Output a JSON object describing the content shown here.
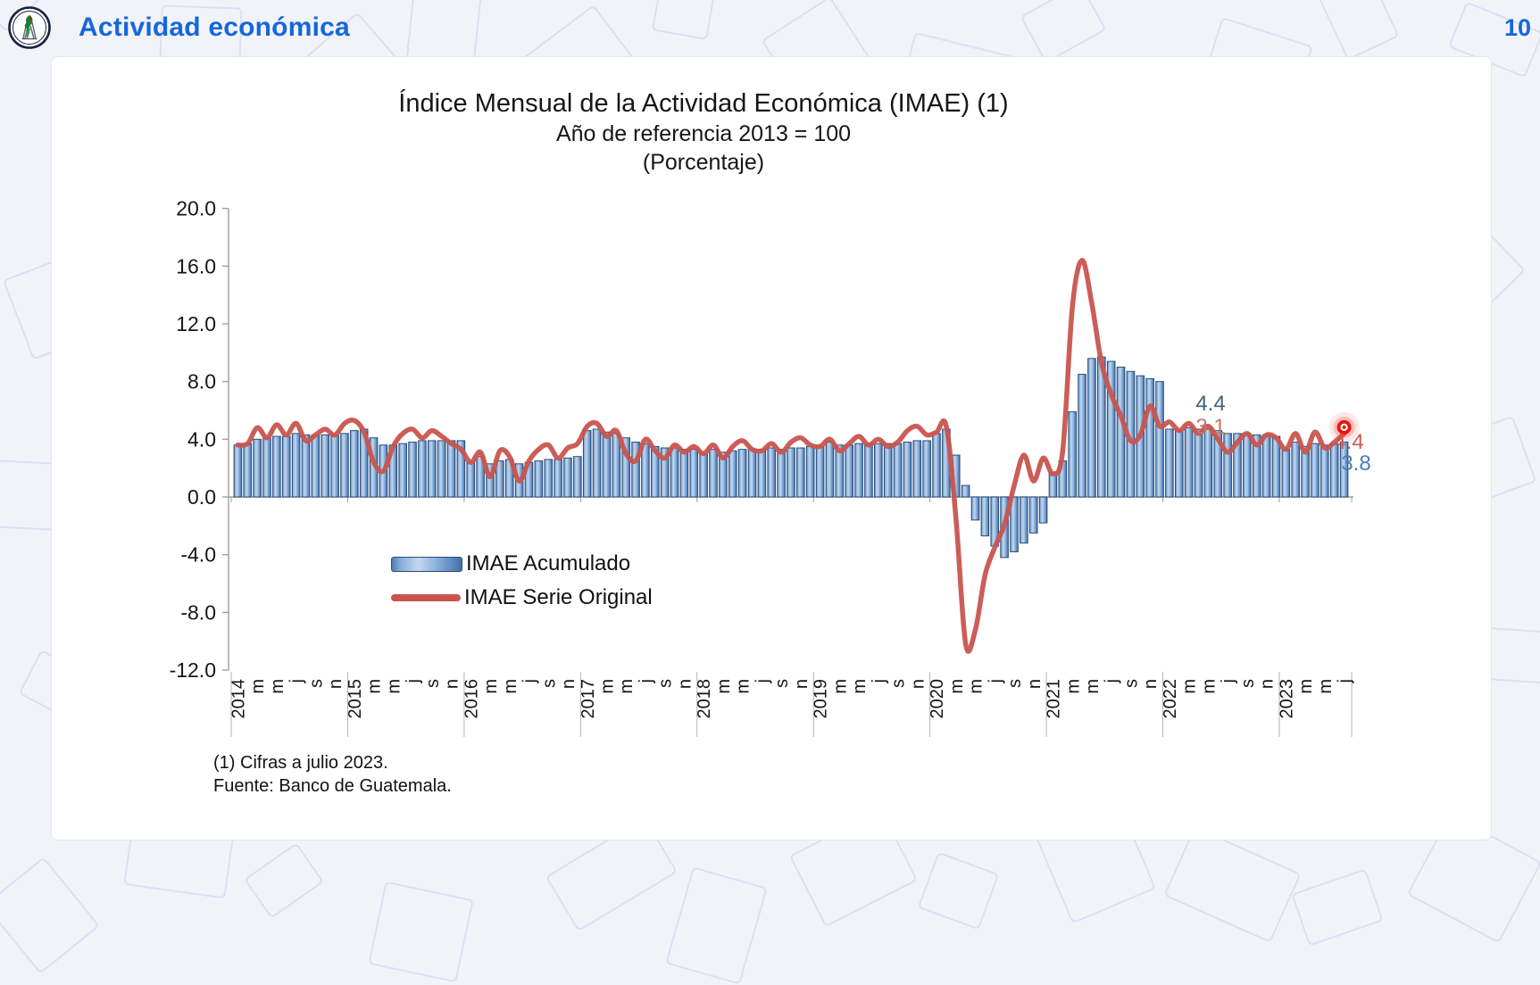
{
  "header": {
    "title": "Actividad económica",
    "page_number": "10",
    "accent_color": "#1667d9",
    "logo": "banco-de-guatemala-seal"
  },
  "chart": {
    "title_line1": "Índice Mensual de la Actividad Económica (IMAE) (1)",
    "title_line2": "Año de referencia 2013 = 100",
    "title_line3": "(Porcentaje)",
    "footnotes": [
      "(1) Cifras a julio 2023.",
      "Fuente: Banco de Guatemala."
    ]
  },
  "chart_data": {
    "type": "combo",
    "title": "Índice Mensual de la Actividad Económica (IMAE)",
    "x_period": "monthly Jan 2014 - Jul 2023",
    "ylim": [
      -12.0,
      20.0
    ],
    "y_tick_step": 4.0,
    "y_ticks": [
      "20.0",
      "16.0",
      "12.0",
      "8.0",
      "4.0",
      "0.0",
      "-4.0",
      "-8.0",
      "-12.0"
    ],
    "grid": false,
    "legend_position": "inside-left-below-axis",
    "tick_labels": [
      "2014",
      "",
      "m",
      "",
      "m",
      "",
      "j",
      "",
      "s",
      "",
      "n",
      "",
      "2015",
      "",
      "m",
      "",
      "m",
      "",
      "j",
      "",
      "s",
      "",
      "n",
      "",
      "2016",
      "",
      "m",
      "",
      "m",
      "",
      "j",
      "",
      "s",
      "",
      "n",
      "",
      "2017",
      "",
      "m",
      "",
      "m",
      "",
      "j",
      "",
      "s",
      "",
      "n",
      "",
      "2018",
      "",
      "m",
      "",
      "m",
      "",
      "j",
      "",
      "s",
      "",
      "n",
      "",
      "2019",
      "",
      "m",
      "",
      "m",
      "",
      "j",
      "",
      "s",
      "",
      "n",
      "",
      "2020",
      "",
      "m",
      "",
      "m",
      "",
      "j",
      "",
      "s",
      "",
      "n",
      "",
      "2021",
      "",
      "m",
      "",
      "m",
      "",
      "j",
      "",
      "s",
      "",
      "n",
      "",
      "2022",
      "",
      "m",
      "",
      "m",
      "",
      "j",
      "",
      "s",
      "",
      "n",
      "",
      "2023",
      "",
      "m",
      "",
      "m",
      "",
      "j"
    ],
    "series": [
      {
        "name": "IMAE Acumulado",
        "type": "bar",
        "color": "#4f81bd",
        "border_color": "#2a4d77",
        "values": [
          3.6,
          3.7,
          4.0,
          4.1,
          4.2,
          4.2,
          4.4,
          4.3,
          4.3,
          4.3,
          4.3,
          4.4,
          4.6,
          4.7,
          4.1,
          3.6,
          3.6,
          3.7,
          3.8,
          3.9,
          3.9,
          3.9,
          3.9,
          3.9,
          2.4,
          2.8,
          2.3,
          2.5,
          2.6,
          2.3,
          2.4,
          2.5,
          2.6,
          2.6,
          2.7,
          2.8,
          4.6,
          4.7,
          4.5,
          4.4,
          4.1,
          3.8,
          3.7,
          3.5,
          3.4,
          3.4,
          3.3,
          3.3,
          3.0,
          3.3,
          3.1,
          3.2,
          3.3,
          3.3,
          3.3,
          3.4,
          3.3,
          3.4,
          3.4,
          3.5,
          3.5,
          3.8,
          3.6,
          3.6,
          3.7,
          3.7,
          3.7,
          3.7,
          3.7,
          3.8,
          3.9,
          3.9,
          4.4,
          4.7,
          2.9,
          0.8,
          -1.6,
          -2.7,
          -3.4,
          -4.2,
          -3.8,
          -3.2,
          -2.5,
          -1.8,
          1.7,
          2.5,
          5.9,
          8.5,
          9.6,
          9.7,
          9.4,
          9.0,
          8.7,
          8.4,
          8.2,
          8.0,
          4.7,
          4.6,
          4.8,
          4.7,
          4.7,
          4.6,
          4.4,
          4.4,
          4.4,
          4.3,
          4.3,
          4.2,
          3.3,
          3.8,
          3.5,
          3.7,
          3.6,
          3.7,
          3.8
        ]
      },
      {
        "name": "IMAE Serie Original",
        "type": "line",
        "color": "#c9544e",
        "values": [
          3.6,
          3.7,
          4.8,
          4.1,
          5.0,
          4.3,
          5.1,
          3.9,
          4.3,
          4.7,
          4.3,
          5.1,
          5.3,
          4.5,
          2.4,
          1.8,
          3.5,
          4.4,
          4.7,
          4.1,
          4.6,
          4.2,
          3.7,
          3.3,
          2.4,
          3.1,
          1.4,
          3.2,
          2.8,
          1.1,
          2.5,
          3.3,
          3.6,
          2.7,
          3.4,
          3.7,
          4.9,
          5.1,
          4.2,
          4.6,
          3.0,
          2.5,
          4.0,
          3.2,
          2.7,
          3.6,
          3.1,
          3.5,
          3.0,
          3.6,
          2.7,
          3.5,
          3.9,
          3.3,
          3.2,
          3.7,
          3.1,
          3.8,
          4.1,
          3.6,
          3.5,
          4.0,
          3.2,
          3.7,
          4.2,
          3.6,
          4.0,
          3.5,
          3.8,
          4.6,
          4.9,
          4.3,
          4.5,
          4.9,
          -1.5,
          -10.2,
          -9.2,
          -5.4,
          -3.5,
          -1.9,
          0.8,
          2.9,
          1.1,
          2.7,
          1.6,
          3.2,
          13.2,
          16.4,
          13.4,
          9.3,
          7.1,
          5.6,
          3.9,
          4.3,
          6.3,
          4.9,
          5.2,
          4.6,
          5.1,
          4.4,
          4.9,
          4.0,
          3.1,
          3.8,
          4.4,
          3.6,
          4.3,
          4.1,
          3.3,
          4.4,
          3.1,
          4.5,
          3.4,
          3.8,
          4.4
        ]
      }
    ],
    "annotations": [
      {
        "text": "4.4",
        "series": "IMAE Acumulado",
        "month": "jul-2022",
        "color": "#44607e"
      },
      {
        "text": "3.1",
        "series": "IMAE Serie Original",
        "month": "jul-2022",
        "color": "#c4776b"
      },
      {
        "text": "4.4",
        "series": "IMAE Serie Original",
        "month": "jul-2023",
        "color": "#cb5a50"
      },
      {
        "text": "3.8",
        "series": "IMAE Acumulado",
        "month": "jul-2023",
        "color": "#4e7cb8"
      }
    ],
    "end_marker": {
      "month": "jul-2023",
      "series": "IMAE Serie Original",
      "style": "red-glow-dot",
      "color": "#ee1208"
    }
  }
}
